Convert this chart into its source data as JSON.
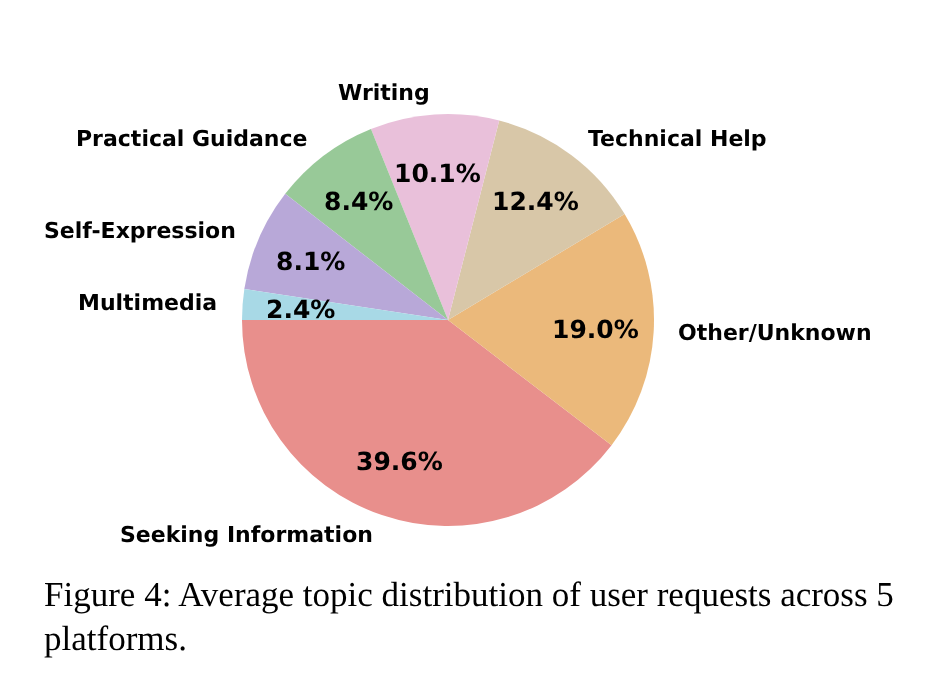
{
  "chart_data": {
    "type": "pie",
    "categories": [
      "Seeking Information",
      "Other/Unknown",
      "Technical Help",
      "Writing",
      "Practical Guidance",
      "Self-Expression",
      "Multimedia"
    ],
    "values": [
      39.6,
      19.0,
      12.4,
      10.1,
      8.4,
      8.1,
      2.4
    ],
    "value_labels": [
      "39.6%",
      "19.0%",
      "12.4%",
      "10.1%",
      "8.4%",
      "8.1%",
      "2.4%"
    ],
    "colors": [
      "#e88f8c",
      "#ebb97b",
      "#d8c7a8",
      "#e9c0da",
      "#98c998",
      "#b8a8d8",
      "#a8d9e6"
    ],
    "annotations": [
      "Figure 4:  Average topic distribution of user requests across 5 platforms."
    ]
  }
}
